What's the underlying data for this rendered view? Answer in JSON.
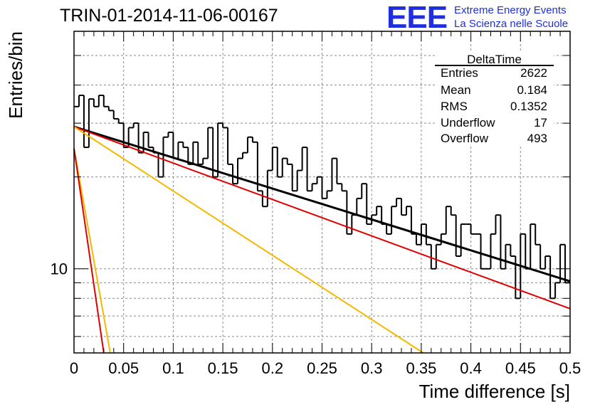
{
  "title": "TRIN-01-2014-11-06-00167",
  "logo": {
    "mark": "EEE",
    "line1": "Extreme Energy Events",
    "line2": "La Scienza nelle Scuole"
  },
  "stats": {
    "name": "DeltaTime",
    "rows": [
      {
        "key": "Entries",
        "value": "2622"
      },
      {
        "key": "Mean",
        "value": "0.184"
      },
      {
        "key": "RMS",
        "value": "0.1352"
      },
      {
        "key": "Underflow",
        "value": "17"
      },
      {
        "key": "Overflow",
        "value": "493"
      }
    ]
  },
  "colors": {
    "histogram": "#000000",
    "total_fit": "#000000",
    "slow_component": "#e00000",
    "fast_component": "#e00000",
    "intermediate_component": "#f5b800",
    "grid": "#8a8a8a",
    "logo": "#1f2fe0"
  },
  "chart_data": {
    "type": "line",
    "xlabel": "Time difference [s]",
    "ylabel": "Entries/bin",
    "xlim": [
      0,
      0.5
    ],
    "ylim": [
      5.3,
      60
    ],
    "log_y": true,
    "grid": true,
    "x_ticks": [
      "0",
      "0.05",
      "0.1",
      "0.15",
      "0.2",
      "0.25",
      "0.3",
      "0.35",
      "0.4",
      "0.45",
      "0.5"
    ],
    "y_tick_labels": [
      {
        "value": 10,
        "label": "10"
      }
    ],
    "histogram": {
      "bin_width": 0.005,
      "values": [
        34,
        37,
        25,
        36,
        34,
        37,
        34,
        33,
        31,
        30,
        25,
        29,
        30,
        24,
        28,
        25,
        24,
        20,
        27,
        28,
        23,
        26,
        25,
        22,
        26,
        22,
        23,
        29,
        20,
        30,
        29,
        22,
        19,
        23,
        24,
        27,
        26,
        18,
        16,
        21,
        25,
        20,
        23,
        22,
        18,
        21,
        25,
        18,
        19,
        20,
        17,
        18,
        23,
        19,
        18,
        13,
        15,
        17,
        19,
        14,
        15,
        16,
        14,
        13,
        16,
        17,
        15,
        16,
        13,
        12,
        14,
        12,
        10,
        12,
        13,
        16,
        15,
        11,
        14,
        14,
        13,
        13,
        10,
        10,
        13,
        15,
        10,
        12,
        11,
        8,
        13,
        10,
        14,
        12,
        10,
        11,
        8,
        9,
        12,
        9
      ]
    },
    "series": [
      {
        "role": "total_fit",
        "x": [
          0,
          0.5
        ],
        "y": [
          29.2,
          9.1
        ]
      },
      {
        "role": "slow_component",
        "x": [
          0,
          0.5
        ],
        "y": [
          29.2,
          7.4
        ]
      },
      {
        "role": "intermediate_component",
        "x": [
          0,
          0.0365
        ],
        "y": [
          24.8,
          5.3
        ]
      },
      {
        "role": "fast_component",
        "x": [
          0,
          0.03
        ],
        "y": [
          24.8,
          5.3
        ]
      },
      {
        "role": "intermediate_component",
        "x": [
          0,
          0.352
        ],
        "y": [
          29.2,
          5.3
        ]
      }
    ]
  }
}
